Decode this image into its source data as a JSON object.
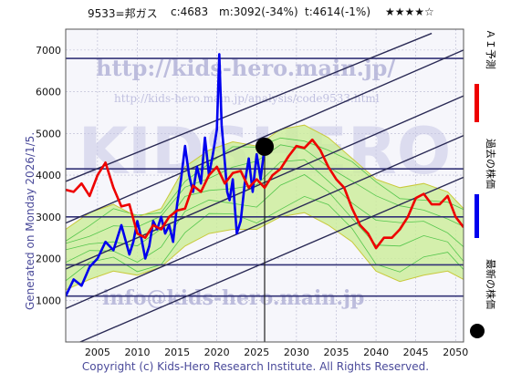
{
  "header": {
    "ticker": "9533=邦ガス",
    "current": "c:4683",
    "mid": "m:3092(-34%)",
    "target": "t:4614(-1%)",
    "stars": "★★★★☆"
  },
  "side_label": "Generated on Monday 2026/1/5.",
  "footer": "Copyright (c) Kids-Hero Research Institute. All Rights Reserved.",
  "watermarks": {
    "url": "http://kids-hero.main.jp/",
    "url_path": "http://kids-hero.main.jp/analysis/code9533.html",
    "email": "info@kids-hero.main.jp",
    "big": "KIDSHERO"
  },
  "legend": {
    "ai_forecast": "ＡＩ予測",
    "past_price": "過去の株価",
    "latest_price": "最新の株価"
  },
  "colors": {
    "ai": "#ee0000",
    "price": "#0000ee",
    "band_fill": "#ccee99",
    "band_line": "#33bb33",
    "trend": "#2a2a55",
    "hline": "#333377"
  },
  "chart_data": {
    "type": "line",
    "xlim": [
      2001,
      2051
    ],
    "ylim": [
      0,
      7500
    ],
    "x_ticks": [
      2005,
      2010,
      2015,
      2020,
      2025,
      2030,
      2035,
      2040,
      2045,
      2050
    ],
    "y_ticks": [
      1000,
      2000,
      3000,
      4000,
      5000,
      6000,
      7000
    ],
    "grid": true,
    "legend_position": "right side, vertical",
    "horizontal_levels": [
      1100,
      1850,
      3000,
      4150,
      6800
    ],
    "trend_lines": [
      {
        "x": [
          2001,
          2047
        ],
        "y": [
          3850,
          7400
        ]
      },
      {
        "x": [
          2001,
          2051
        ],
        "y": [
          2850,
          7000
        ]
      },
      {
        "x": [
          2001,
          2051
        ],
        "y": [
          1750,
          5900
        ]
      },
      {
        "x": [
          2001,
          2051
        ],
        "y": [
          800,
          4950
        ]
      },
      {
        "x": [
          2001,
          2051
        ],
        "y": [
          -150,
          3950
        ]
      }
    ],
    "latest_point": {
      "x": 2026,
      "y": 4683
    },
    "current_year_marker": 2026,
    "series": [
      {
        "name": "過去の株価",
        "role": "price",
        "x": [
          2001,
          2002,
          2003,
          2004,
          2005,
          2006,
          2007,
          2008,
          2009,
          2009.5,
          2010,
          2010.5,
          2011,
          2011.5,
          2012,
          2012.5,
          2013,
          2013.5,
          2014,
          2014.5,
          2015,
          2015.5,
          2016,
          2016.5,
          2017,
          2017.5,
          2018,
          2018.5,
          2019,
          2019.5,
          2020,
          2020.3,
          2020.6,
          2021,
          2021.3,
          2021.6,
          2022,
          2022.5,
          2023,
          2023.5,
          2024,
          2024.5,
          2025,
          2025.5,
          2026
        ],
        "y": [
          1100,
          1500,
          1350,
          1800,
          2000,
          2400,
          2200,
          2800,
          2100,
          2400,
          2900,
          2500,
          2000,
          2300,
          2900,
          2700,
          3000,
          2600,
          2800,
          2400,
          3300,
          3900,
          4700,
          4000,
          3600,
          4200,
          3800,
          4900,
          4000,
          4500,
          5100,
          6900,
          5200,
          4300,
          3600,
          3400,
          3900,
          2600,
          2900,
          3800,
          4400,
          3600,
          4500,
          3900,
          4683
        ]
      },
      {
        "name": "ＡＩ予測",
        "role": "forecast",
        "x": [
          2001,
          2002,
          2003,
          2004,
          2005,
          2006,
          2007,
          2008,
          2009,
          2010,
          2011,
          2012,
          2013,
          2014,
          2015,
          2016,
          2017,
          2018,
          2019,
          2020,
          2021,
          2022,
          2023,
          2024,
          2025,
          2026,
          2027,
          2028,
          2029,
          2030,
          2031,
          2032,
          2033,
          2034,
          2035,
          2036,
          2037,
          2038,
          2039,
          2040,
          2041,
          2042,
          2043,
          2044,
          2045,
          2046,
          2047,
          2048,
          2049,
          2050,
          2051
        ],
        "y": [
          3650,
          3600,
          3800,
          3500,
          4000,
          4300,
          3700,
          3250,
          3300,
          2600,
          2500,
          2800,
          2700,
          3000,
          3150,
          3200,
          3750,
          3600,
          4000,
          4200,
          3800,
          4050,
          4100,
          3700,
          3900,
          3700,
          4000,
          4150,
          4450,
          4700,
          4650,
          4850,
          4600,
          4200,
          3900,
          3700,
          3200,
          2800,
          2600,
          2250,
          2500,
          2500,
          2700,
          3000,
          3450,
          3550,
          3300,
          3300,
          3500,
          3000,
          2750
        ]
      },
      {
        "name": "",
        "role": "band_upper",
        "x": [
          2001,
          2004,
          2007,
          2010,
          2013,
          2016,
          2019,
          2022,
          2025,
          2028,
          2031,
          2034,
          2037,
          2040,
          2043,
          2046,
          2049,
          2051
        ],
        "y": [
          2700,
          3100,
          3300,
          3000,
          3200,
          4200,
          4600,
          4800,
          4700,
          5100,
          5200,
          4900,
          4400,
          3900,
          3700,
          3800,
          3600,
          3200
        ]
      },
      {
        "name": "",
        "role": "band_lower",
        "x": [
          2001,
          2004,
          2007,
          2010,
          2013,
          2016,
          2019,
          2022,
          2025,
          2028,
          2031,
          2034,
          2037,
          2040,
          2043,
          2046,
          2049,
          2051
        ],
        "y": [
          1250,
          1500,
          1700,
          1600,
          1800,
          2300,
          2600,
          2700,
          2700,
          3000,
          3100,
          2800,
          2400,
          1700,
          1450,
          1600,
          1700,
          1500
        ]
      }
    ]
  }
}
